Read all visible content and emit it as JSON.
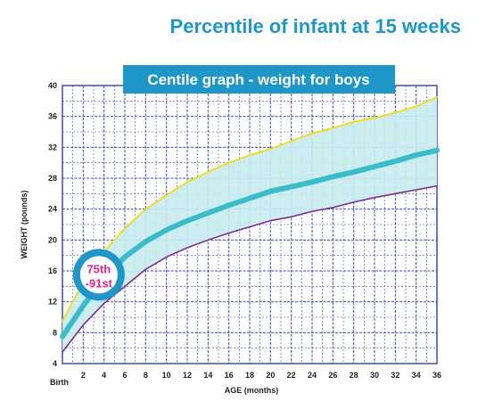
{
  "page_title": "Percentile of infant at 15 weeks",
  "chart_data": {
    "type": "line",
    "title": "Centile graph - weight for boys",
    "xlabel": "AGE (months)",
    "ylabel": "WEIGHT (pounds)",
    "birth_label": "Birth",
    "xlim": [
      0,
      36
    ],
    "ylim": [
      4,
      40
    ],
    "x_ticks": [
      2,
      4,
      6,
      8,
      10,
      12,
      14,
      16,
      18,
      20,
      22,
      24,
      26,
      28,
      30,
      32,
      34,
      36
    ],
    "y_ticks": [
      4,
      8,
      12,
      16,
      20,
      24,
      28,
      32,
      36,
      40
    ],
    "grid": true,
    "x": [
      0,
      2,
      4,
      6,
      8,
      10,
      12,
      14,
      16,
      18,
      20,
      22,
      24,
      26,
      28,
      30,
      32,
      34,
      36
    ],
    "series": [
      {
        "values": [
          9.5,
          14.5,
          18.5,
          21.5,
          24,
          25.8,
          27.5,
          28.8,
          30,
          31,
          31.8,
          32.8,
          33.8,
          34.5,
          35.3,
          35.8,
          36.5,
          37.3,
          38.5
        ],
        "color": "#f0dc28"
      },
      {
        "values": [
          7.5,
          11.5,
          15,
          17.8,
          19.8,
          21.3,
          22.5,
          23.5,
          24.5,
          25.4,
          26.3,
          26.9,
          27.5,
          28.2,
          28.8,
          29.5,
          30.2,
          31,
          31.6
        ],
        "color": "#3cbcc8"
      },
      {
        "values": [
          5.5,
          9,
          11.8,
          14,
          16.2,
          17.8,
          19,
          20,
          20.9,
          21.7,
          22.5,
          23,
          23.7,
          24.2,
          24.9,
          25.5,
          26,
          26.5,
          27
        ],
        "color": "#7b2d8e"
      }
    ],
    "band_color": "#c6ecef",
    "grid_color": "#3a4db4",
    "marker": {
      "line1": "75th",
      "line2": "-91st",
      "x": 3.5,
      "y": 15.5,
      "text_color": "#e8208c",
      "ring_color": "#1e96c8"
    },
    "title_box_color": "#1e96c8"
  }
}
